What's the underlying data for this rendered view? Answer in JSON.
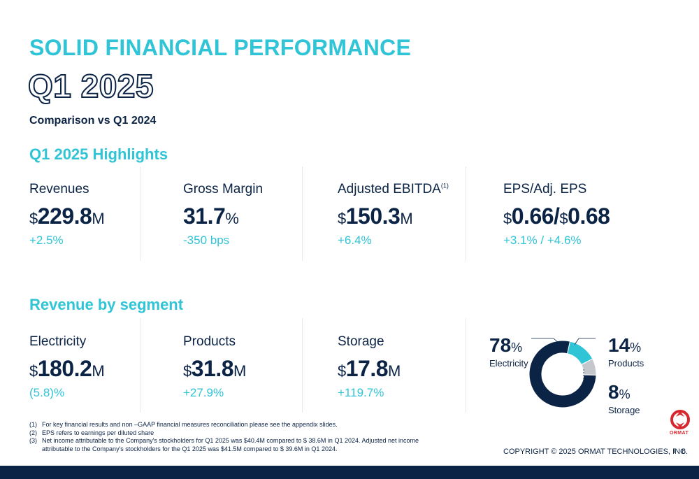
{
  "title": "SOLID FINANCIAL PERFORMANCE",
  "period": "Q1 2025",
  "comparison": "Comparison vs Q1 2024",
  "highlights": {
    "heading": "Q1 2025 Highlights",
    "revenues": {
      "label": "Revenues",
      "currency": "$",
      "value": "229.8",
      "unit": "M",
      "change": "+2.5%"
    },
    "gross_margin": {
      "label": "Gross Margin",
      "value": "31.7",
      "unit": "%",
      "change": "-350 bps"
    },
    "adjusted_ebitda": {
      "label": "Adjusted EBITDA",
      "footnote_ref": "(1)",
      "currency": "$",
      "value": "150.3",
      "unit": "M",
      "change": "+6.4%"
    },
    "eps": {
      "label": "EPS/Adj. EPS",
      "currency": "$",
      "value1": "0.66",
      "slash": "/",
      "currency2": "$",
      "value2": "0.68",
      "change": "+3.1% / +4.6%"
    }
  },
  "segments": {
    "heading": "Revenue by segment",
    "electricity": {
      "label": "Electricity",
      "currency": "$",
      "value": "180.2",
      "unit": "M",
      "change": "(5.8)%"
    },
    "products": {
      "label": "Products",
      "currency": "$",
      "value": "31.8",
      "unit": "M",
      "change": "+27.9%"
    },
    "storage": {
      "label": "Storage",
      "currency": "$",
      "value": "17.8",
      "unit": "M",
      "change": "+119.7%"
    }
  },
  "donut": {
    "electricity": {
      "pct": "78",
      "unit": "%",
      "label": "Electricity",
      "value": 78,
      "color": "#0b2345"
    },
    "products": {
      "pct": "14",
      "unit": "%",
      "label": "Products",
      "value": 14,
      "color": "#2fc4d6"
    },
    "storage": {
      "pct": "8",
      "unit": "%",
      "label": "Storage",
      "value": 8,
      "color": "#c4c8cd"
    }
  },
  "footnotes": [
    {
      "num": "(1)",
      "text": "For key financial results and non –GAAP financial measures reconciliation please see the appendix slides."
    },
    {
      "num": "(2)",
      "text": "EPS refers to earnings per diluted share"
    },
    {
      "num": "(3)",
      "text": "Net income attributable to the Company's stockholders for Q1 2025 was $40.4M compared to $ 38.6M in Q1 2024. Adjusted net income attributable to the Company's stockholders for the Q1 2025 was $41.5M compared to $ 39.6M in Q1 2024."
    }
  ],
  "copyright": "COPYRIGHT © 2025 ORMAT TECHNOLOGIES, INC.",
  "separator": "I",
  "page_number": "6",
  "logo": {
    "text": "ORMAT",
    "color": "#d7282f",
    "icon": "ormat-logo-icon"
  },
  "colors": {
    "accent": "#2fc4d6",
    "navy": "#0b2345",
    "grey": "#c4c8cd"
  }
}
